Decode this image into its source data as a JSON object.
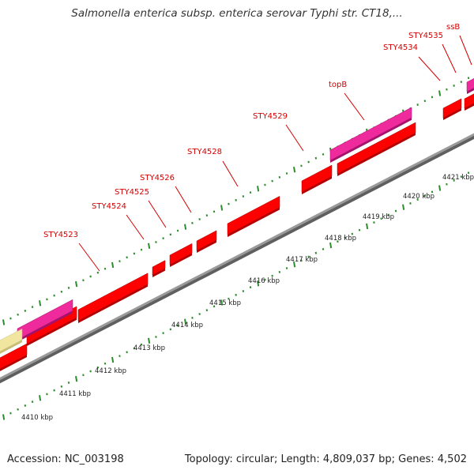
{
  "title": "Salmonella enterica subsp. enterica serovar Typhi str. CT18,...",
  "footer": {
    "accession": "Accession: NC_003198",
    "topology": "Topology: circular; Length: 4,809,037 bp; Genes: 4,502"
  },
  "colors": {
    "cds": "#ff0000",
    "gene_highlight": "#ee2a9c",
    "pseudo": "#f1e6a0",
    "tick": "#2e8b2e",
    "label": "#d40000",
    "backbone": "#9a9a9a"
  },
  "kbp_ticks": [
    "4410 kbp",
    "4411 kbp",
    "4412 kbp",
    "4413 kbp",
    "4414 kbp",
    "4415 kbp",
    "4416 kbp",
    "4417 kbp",
    "4418 kbp",
    "4419 kbp",
    "4420 kbp",
    "4421 kbp"
  ],
  "gene_labels": [
    "STY4523",
    "STY4524",
    "STY4525",
    "STY4526",
    "STY4528",
    "STY4529",
    "topB",
    "STY4534",
    "STY4535",
    "ssB"
  ]
}
